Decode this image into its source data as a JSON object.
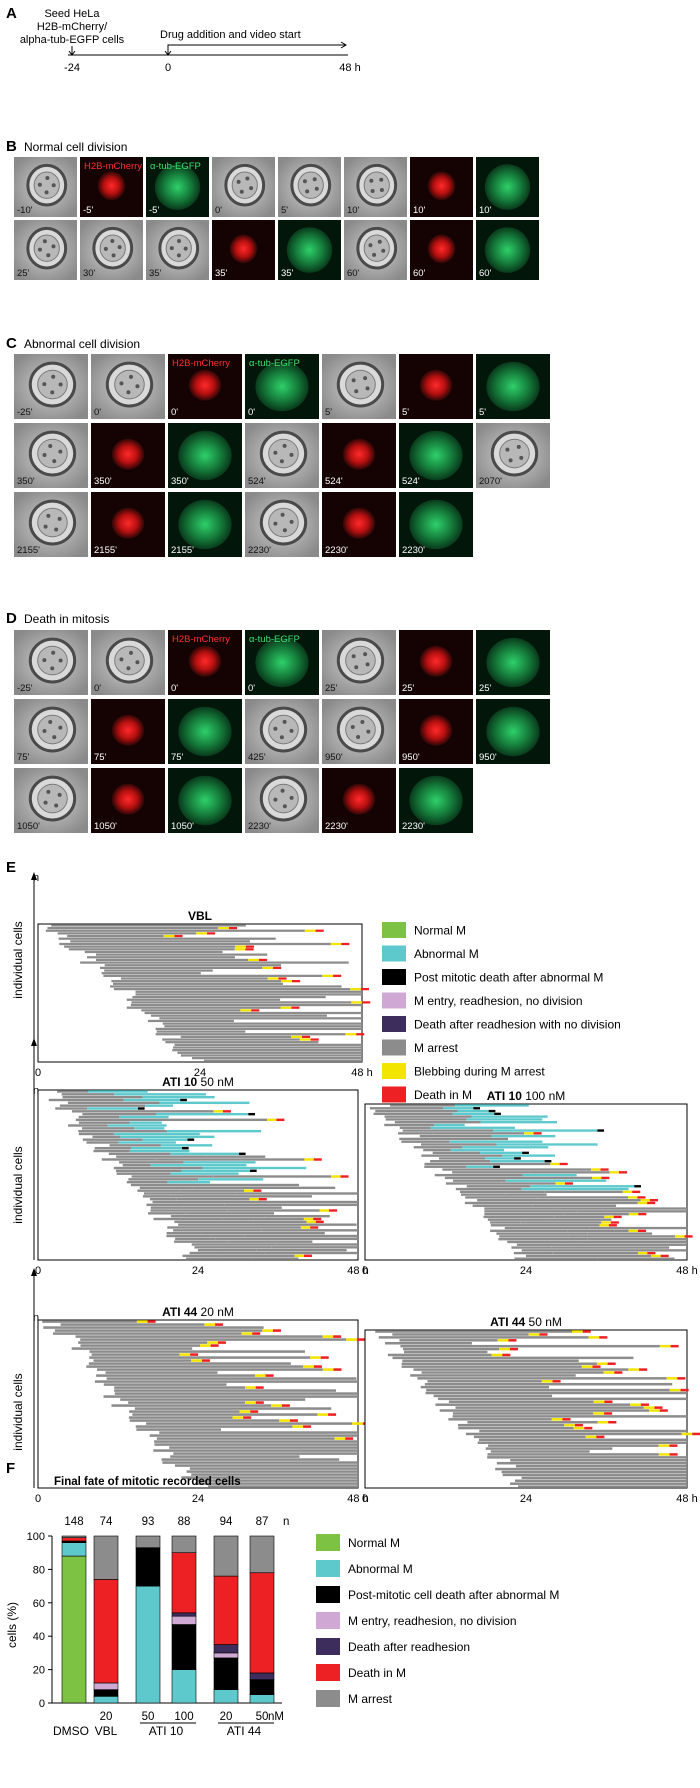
{
  "colors": {
    "normal_m": "#7dc242",
    "abnormal_m": "#5ec9cc",
    "post_mitotic_death": "#000000",
    "m_entry_readhesion": "#cfa9d3",
    "death_after_readhesion": "#3d2d5c",
    "m_arrest": "#8c8c8c",
    "blebbing": "#f2e500",
    "death_in_m": "#ed2024"
  },
  "panel_a": {
    "letter": "A",
    "seed_label": [
      "Seed HeLa",
      "H2B-mCherry/",
      "alpha-tub-EGFP cells"
    ],
    "drug_label": "Drug addition and video start",
    "ticks": [
      "-24",
      "0",
      "48 h"
    ]
  },
  "panel_b": {
    "letter": "B",
    "title": "Normal cell division",
    "rows": [
      [
        {
          "label": "-10'",
          "type": "phase",
          "tag": ""
        },
        {
          "label": "-5'",
          "type": "red",
          "tag": "H2B-mCherry"
        },
        {
          "label": "-5'",
          "type": "green",
          "tag": "α-tub-EGFP"
        },
        {
          "label": "0'",
          "type": "phase",
          "tag": ""
        },
        {
          "label": "5'",
          "type": "phase",
          "tag": ""
        },
        {
          "label": "10'",
          "type": "phase",
          "tag": ""
        },
        {
          "label": "10'",
          "type": "red",
          "tag": ""
        },
        {
          "label": "10'",
          "type": "green",
          "tag": ""
        }
      ],
      [
        {
          "label": "25'",
          "type": "phase",
          "tag": ""
        },
        {
          "label": "30'",
          "type": "phase",
          "tag": ""
        },
        {
          "label": "35'",
          "type": "phase",
          "tag": ""
        },
        {
          "label": "35'",
          "type": "red",
          "tag": ""
        },
        {
          "label": "35'",
          "type": "green",
          "tag": ""
        },
        {
          "label": "60'",
          "type": "phase",
          "tag": ""
        },
        {
          "label": "60'",
          "type": "red",
          "tag": ""
        },
        {
          "label": "60'",
          "type": "green",
          "tag": ""
        }
      ]
    ]
  },
  "panel_c": {
    "letter": "C",
    "title": "Abnormal cell division",
    "rows": [
      [
        {
          "label": "-25'",
          "type": "phase",
          "tag": ""
        },
        {
          "label": "0'",
          "type": "phase",
          "tag": ""
        },
        {
          "label": "0'",
          "type": "red",
          "tag": "H2B-mCherry"
        },
        {
          "label": "0'",
          "type": "green",
          "tag": "α-tub-EGFP"
        },
        {
          "label": "5'",
          "type": "phase",
          "tag": ""
        },
        {
          "label": "5'",
          "type": "red",
          "tag": ""
        },
        {
          "label": "5'",
          "type": "green",
          "tag": ""
        }
      ],
      [
        {
          "label": "350'",
          "type": "phase",
          "tag": ""
        },
        {
          "label": "350'",
          "type": "red",
          "tag": ""
        },
        {
          "label": "350'",
          "type": "green",
          "tag": ""
        },
        {
          "label": "524'",
          "type": "phase",
          "tag": ""
        },
        {
          "label": "524'",
          "type": "red",
          "tag": ""
        },
        {
          "label": "524'",
          "type": "green",
          "tag": ""
        },
        {
          "label": "2070'",
          "type": "phase",
          "tag": ""
        }
      ],
      [
        {
          "label": "2155'",
          "type": "phase",
          "tag": ""
        },
        {
          "label": "2155'",
          "type": "red",
          "tag": ""
        },
        {
          "label": "2155'",
          "type": "green",
          "tag": ""
        },
        {
          "label": "2230'",
          "type": "phase",
          "tag": ""
        },
        {
          "label": "2230'",
          "type": "red",
          "tag": ""
        },
        {
          "label": "2230'",
          "type": "green",
          "tag": ""
        }
      ]
    ]
  },
  "panel_d": {
    "letter": "D",
    "title": "Death in mitosis",
    "rows": [
      [
        {
          "label": "-25'",
          "type": "phase",
          "tag": ""
        },
        {
          "label": "0'",
          "type": "phase",
          "tag": ""
        },
        {
          "label": "0'",
          "type": "red",
          "tag": "H2B-mCherry"
        },
        {
          "label": "0'",
          "type": "green",
          "tag": "α-tub-EGFP"
        },
        {
          "label": "25'",
          "type": "phase",
          "tag": ""
        },
        {
          "label": "25'",
          "type": "red",
          "tag": ""
        },
        {
          "label": "25'",
          "type": "green",
          "tag": ""
        }
      ],
      [
        {
          "label": "75'",
          "type": "phase",
          "tag": ""
        },
        {
          "label": "75'",
          "type": "red",
          "tag": ""
        },
        {
          "label": "75'",
          "type": "green",
          "tag": ""
        },
        {
          "label": "425'",
          "type": "phase",
          "tag": ""
        },
        {
          "label": "950'",
          "type": "phase",
          "tag": ""
        },
        {
          "label": "950'",
          "type": "red",
          "tag": ""
        },
        {
          "label": "950'",
          "type": "green",
          "tag": ""
        }
      ],
      [
        {
          "label": "1050'",
          "type": "phase",
          "tag": ""
        },
        {
          "label": "1050'",
          "type": "red",
          "tag": ""
        },
        {
          "label": "1050'",
          "type": "green",
          "tag": ""
        },
        {
          "label": "2230'",
          "type": "phase",
          "tag": ""
        },
        {
          "label": "2230'",
          "type": "red",
          "tag": ""
        },
        {
          "label": "2230'",
          "type": "green",
          "tag": ""
        }
      ]
    ]
  },
  "panel_e": {
    "letter": "E",
    "axis_n": "n",
    "y_label": "individual cells",
    "ticks": [
      "0",
      "24",
      "48 h"
    ],
    "legend": [
      {
        "label": "Normal M",
        "color": "#7dc242"
      },
      {
        "label": "Abnormal M",
        "color": "#5ec9cc"
      },
      {
        "label": "Post mitotic death after abnormal M",
        "color": "#000000"
      },
      {
        "label": "M entry, readhesion, no division",
        "color": "#cfa9d3"
      },
      {
        "label": "Death after readhesion with no division",
        "color": "#3d2d5c"
      },
      {
        "label": "M arrest",
        "color": "#8c8c8c"
      },
      {
        "label": "Blebbing during M arrest",
        "color": "#f2e500"
      },
      {
        "label": "Death in M",
        "color": "#ed2024"
      }
    ],
    "plots": [
      {
        "name": "VBL",
        "bold": "VBL",
        "rest": ""
      },
      {
        "name": "ATI 10 50 nM",
        "bold": "ATI 10",
        "rest": " 50 nM"
      },
      {
        "name": "ATI 10 100 nM",
        "bold": "ATI 10",
        "rest": " 100 nM"
      },
      {
        "name": "ATI 44 20 nM",
        "bold": "ATI 44",
        "rest": " 20 nM"
      },
      {
        "name": "ATI 44 50 nM",
        "bold": "ATI 44",
        "rest": " 50 nM"
      }
    ]
  },
  "panel_f": {
    "letter": "F",
    "title": "Final fate of mitotic recorded cells",
    "ylabel": "cells (%)",
    "n_label": "n",
    "nm_label": "nM",
    "group_labels": [
      "DMSO",
      "VBL",
      "ATI 10",
      "ATI 44"
    ],
    "conc_labels": [
      "20",
      "50",
      "100",
      "20",
      "50"
    ],
    "legend": [
      {
        "label": "Normal M",
        "color": "#7dc242"
      },
      {
        "label": "Abnormal M",
        "color": "#5ec9cc"
      },
      {
        "label": "Post-mitotic cell death after abnormal M",
        "color": "#000000"
      },
      {
        "label": "M entry, readhesion, no division",
        "color": "#cfa9d3"
      },
      {
        "label": "Death after readhesion",
        "color": "#3d2d5c"
      },
      {
        "label": "Death in M",
        "color": "#ed2024"
      },
      {
        "label": "M arrest",
        "color": "#8c8c8c"
      }
    ]
  },
  "chart_data": [
    {
      "type": "bar",
      "stacked": true,
      "title": "Final fate of mitotic recorded cells",
      "ylabel": "cells (%)",
      "ylim": [
        0,
        100
      ],
      "yticks": [
        0,
        20,
        40,
        60,
        80,
        100
      ],
      "categories": [
        "DMSO",
        "VBL 20",
        "ATI 10 50",
        "ATI 10 100",
        "ATI 44 20",
        "ATI 44 50"
      ],
      "n": [
        148,
        74,
        93,
        88,
        94,
        87
      ],
      "series": [
        {
          "name": "Normal M",
          "color": "#7dc242",
          "values": [
            88,
            0,
            0,
            0,
            0,
            0
          ]
        },
        {
          "name": "Abnormal M",
          "color": "#5ec9cc",
          "values": [
            8,
            4,
            70,
            20,
            8,
            5
          ]
        },
        {
          "name": "Post-mitotic cell death after abnormal M",
          "color": "#000000",
          "values": [
            1,
            4,
            23,
            27,
            19,
            9
          ]
        },
        {
          "name": "M entry, readhesion, no division",
          "color": "#cfa9d3",
          "values": [
            0,
            4,
            0,
            5,
            3,
            0
          ]
        },
        {
          "name": "Death after readhesion",
          "color": "#3d2d5c",
          "values": [
            0,
            0,
            0,
            2,
            5,
            4
          ]
        },
        {
          "name": "Death in M",
          "color": "#ed2024",
          "values": [
            2,
            62,
            0,
            36,
            41,
            60
          ]
        },
        {
          "name": "M arrest",
          "color": "#8c8c8c",
          "values": [
            1,
            26,
            7,
            10,
            24,
            22
          ]
        }
      ]
    }
  ]
}
